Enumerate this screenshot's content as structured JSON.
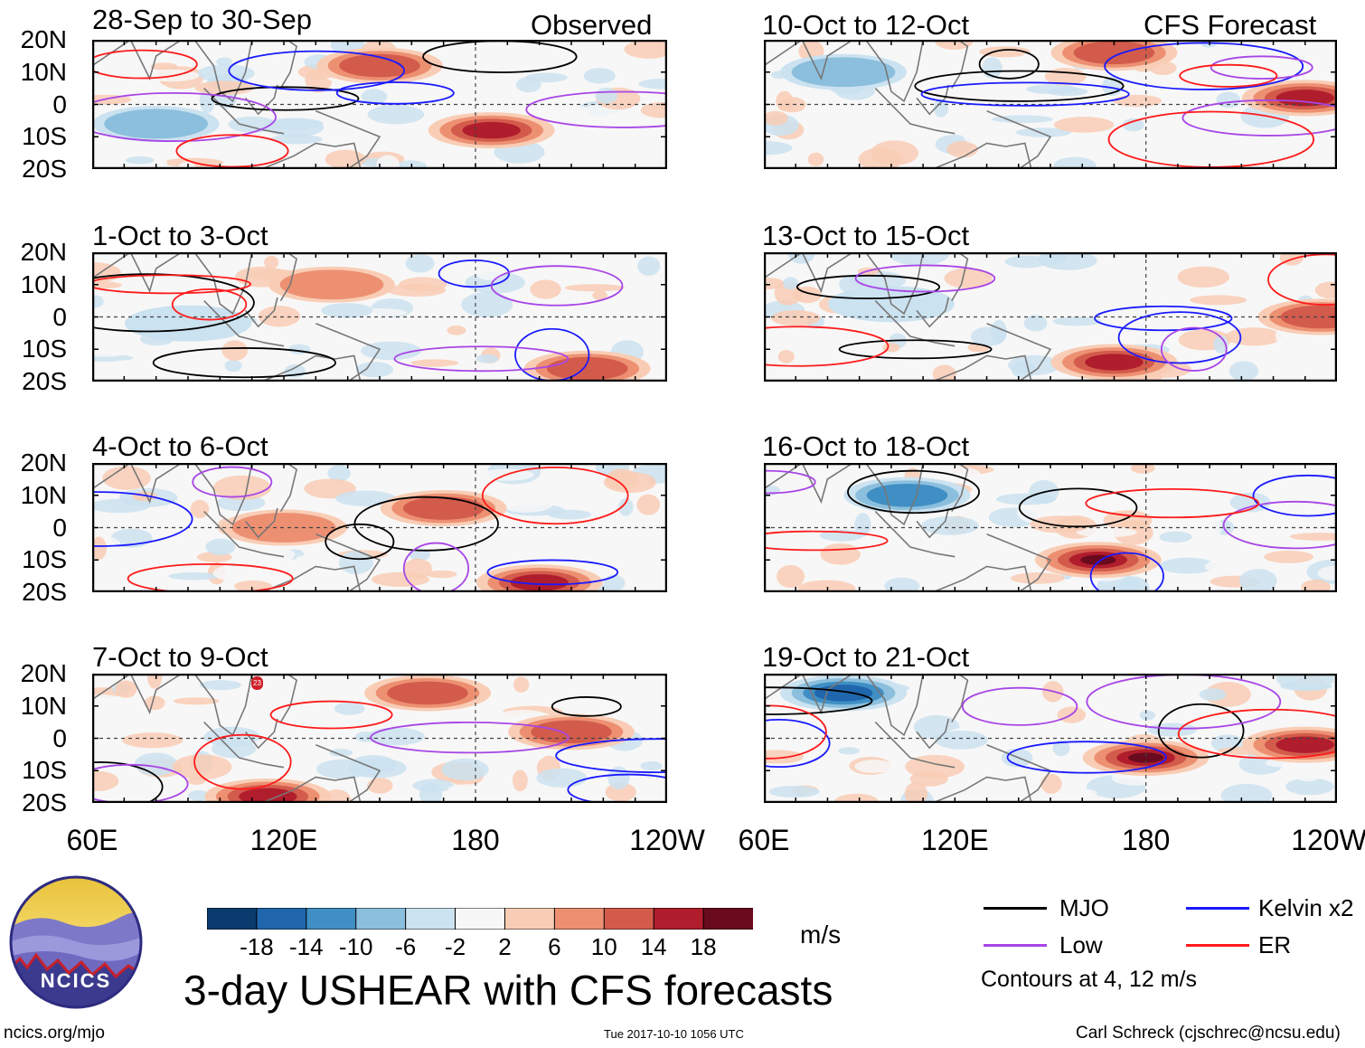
{
  "chart_data": {
    "type": "heatmap",
    "title": "3-day USHEAR with CFS forecasts",
    "units": "m/s",
    "columns": [
      {
        "header": "Observed",
        "panels": [
          "28-Sep to 30-Sep",
          "1-Oct to 3-Oct",
          "4-Oct to 6-Oct",
          "7-Oct to 9-Oct"
        ]
      },
      {
        "header": "CFS Forecast",
        "panels": [
          "10-Oct to 12-Oct",
          "13-Oct to 15-Oct",
          "16-Oct to 18-Oct",
          "19-Oct to 21-Oct"
        ]
      }
    ],
    "y_ticks": [
      "20N",
      "10N",
      "0",
      "10S",
      "20S"
    ],
    "ylim": [
      -20,
      20
    ],
    "x_ticks": [
      {
        "label": "60E",
        "lon": 60
      },
      {
        "label": "120E",
        "lon": 120
      },
      {
        "label": "180",
        "lon": 180
      },
      {
        "label": "120W",
        "lon": 240
      }
    ],
    "xlim": [
      60,
      240
    ],
    "colorbar": {
      "ticks": [
        "-18",
        "-14",
        "-10",
        "-6",
        "-2",
        "2",
        "6",
        "10",
        "14",
        "18"
      ],
      "colors": [
        "#0a3b6e",
        "#1f66ad",
        "#3f8fc4",
        "#8bbfdd",
        "#cbe2f0",
        "#f7f7f7",
        "#f9cdb5",
        "#ed9072",
        "#d35b4c",
        "#b01d2c",
        "#6a0a1e"
      ]
    },
    "legend": [
      {
        "label": "MJO",
        "color": "#000000"
      },
      {
        "label": "Kelvin x2",
        "color": "#1a1aff"
      },
      {
        "label": "Low",
        "color": "#a845e6"
      },
      {
        "label": "ER",
        "color": "#ff1a1a"
      }
    ],
    "contour_note": "Contours at 4, 12 m/s",
    "features": [
      {
        "panel": 0,
        "lon": 185,
        "lat": -8,
        "value": 20
      },
      {
        "panel": 0,
        "lon": 150,
        "lat": 12,
        "value": 14
      },
      {
        "panel": 0,
        "lon": 80,
        "lat": -6,
        "value": -10
      },
      {
        "panel": 1,
        "lon": 135,
        "lat": 10,
        "value": 10
      },
      {
        "panel": 1,
        "lon": 215,
        "lat": -16,
        "value": 16
      },
      {
        "panel": 1,
        "lon": 90,
        "lat": -2,
        "value": -8
      },
      {
        "panel": 2,
        "lon": 170,
        "lat": 6,
        "value": 16
      },
      {
        "panel": 2,
        "lon": 200,
        "lat": -17,
        "value": 18
      },
      {
        "panel": 2,
        "lon": 120,
        "lat": 0,
        "value": 10
      },
      {
        "panel": 3,
        "lon": 165,
        "lat": 14,
        "value": 16
      },
      {
        "panel": 3,
        "lon": 210,
        "lat": 2,
        "value": 16
      },
      {
        "panel": 3,
        "lon": 115,
        "lat": -18,
        "value": 18
      },
      {
        "panel": 4,
        "lon": 230,
        "lat": 2,
        "value": 20
      },
      {
        "panel": 4,
        "lon": 170,
        "lat": 16,
        "value": 14
      },
      {
        "panel": 4,
        "lon": 85,
        "lat": 10,
        "value": -10
      },
      {
        "panel": 5,
        "lon": 170,
        "lat": -14,
        "value": 18
      },
      {
        "panel": 5,
        "lon": 235,
        "lat": 0,
        "value": 16
      },
      {
        "panel": 5,
        "lon": 100,
        "lat": 4,
        "value": -8
      },
      {
        "panel": 6,
        "lon": 165,
        "lat": -10,
        "value": 22
      },
      {
        "panel": 6,
        "lon": 105,
        "lat": 10,
        "value": -16
      },
      {
        "panel": 7,
        "lon": 180,
        "lat": -6,
        "value": 22
      },
      {
        "panel": 7,
        "lon": 85,
        "lat": 14,
        "value": -18
      },
      {
        "panel": 7,
        "lon": 230,
        "lat": -2,
        "value": 18
      }
    ]
  },
  "header": {
    "observed": "Observed",
    "forecast": "CFS Forecast"
  },
  "logo": {
    "text": "NCICS"
  },
  "footer": {
    "url": "ncics.org/mjo",
    "timestamp": "Tue 2017-10-10 1056 UTC",
    "author": "Carl Schreck (cjschrec@ncsu.edu)"
  },
  "storm_marker": {
    "label": "23",
    "lon": 113,
    "lat": 19,
    "color": "#d0202a"
  }
}
